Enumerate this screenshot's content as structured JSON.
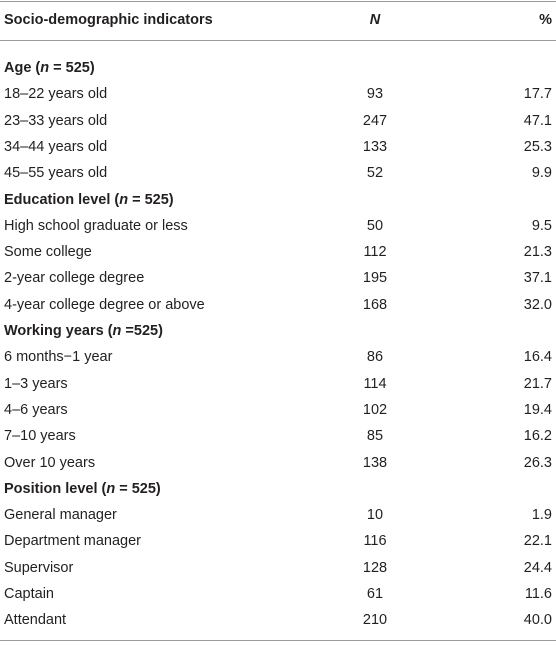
{
  "table": {
    "header": [
      "Socio-demographic indicators",
      "N",
      "%"
    ],
    "sections": [
      {
        "title": [
          "Age (",
          "n",
          " = 525)"
        ],
        "rows": [
          [
            "18–22 years old",
            "93",
            "17.7"
          ],
          [
            "23–33 years old",
            "247",
            "47.1"
          ],
          [
            "34–44 years old",
            "133",
            "25.3"
          ],
          [
            "45–55 years old",
            "52",
            "9.9"
          ]
        ]
      },
      {
        "title": [
          "Education level (",
          "n",
          " = 525)"
        ],
        "rows": [
          [
            "High school graduate or less",
            "50",
            "9.5"
          ],
          [
            "Some college",
            "112",
            "21.3"
          ],
          [
            "2-year college degree",
            "195",
            "37.1"
          ],
          [
            "4-year college degree or above",
            "168",
            "32.0"
          ]
        ]
      },
      {
        "title": [
          "Working years (",
          "n",
          " =525)"
        ],
        "rows": [
          [
            "6 months−1 year",
            "86",
            "16.4"
          ],
          [
            "1–3 years",
            "114",
            "21.7"
          ],
          [
            "4–6 years",
            "102",
            "19.4"
          ],
          [
            "7–10 years",
            "85",
            "16.2"
          ],
          [
            "Over 10 years",
            "138",
            "26.3"
          ]
        ]
      },
      {
        "title": [
          "Position level (",
          "n",
          " = 525)"
        ],
        "rows": [
          [
            "General manager",
            "10",
            "1.9"
          ],
          [
            "Department manager",
            "116",
            "22.1"
          ],
          [
            "Supervisor",
            "128",
            "24.4"
          ],
          [
            "Captain",
            "61",
            "11.6"
          ],
          [
            "Attendant",
            "210",
            "40.0"
          ]
        ]
      }
    ]
  }
}
